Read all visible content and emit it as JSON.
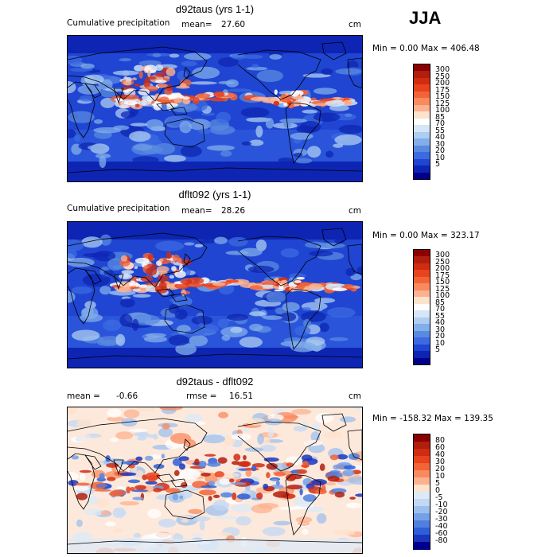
{
  "season": "JJA",
  "panels": [
    {
      "title": "d92taus (yrs 1-1)",
      "left_label": "Cumulative precipitation",
      "stat_label": "mean=",
      "stat_value": "27.60",
      "stat2_label": "",
      "stat2_value": "",
      "units": "cm",
      "minmax": "Min =    0.00 Max = 406.48",
      "colorbar": {
        "ticks": [
          "300",
          "250",
          "200",
          "175",
          "150",
          "125",
          "100",
          "85",
          "70",
          "55",
          "40",
          "30",
          "20",
          "10",
          "5"
        ],
        "colors": [
          "#8b0000",
          "#b01e0e",
          "#d02c12",
          "#e8431e",
          "#f26438",
          "#f88a5e",
          "#fcb190",
          "#fde2cc",
          "#ffffff",
          "#d6e6f8",
          "#aecdf2",
          "#82aeea",
          "#5a8ae0",
          "#3c6ae2",
          "#1f45d2",
          "#0d25b2",
          "#00008b"
        ]
      },
      "map_style": "precip"
    },
    {
      "title": "dflt092 (yrs 1-1)",
      "left_label": "Cumulative precipitation",
      "stat_label": "mean=",
      "stat_value": "28.26",
      "stat2_label": "",
      "stat2_value": "",
      "units": "cm",
      "minmax": "Min =    0.00 Max = 323.17",
      "colorbar": {
        "ticks": [
          "300",
          "250",
          "200",
          "175",
          "150",
          "125",
          "100",
          "85",
          "70",
          "55",
          "40",
          "30",
          "20",
          "10",
          "5"
        ],
        "colors": [
          "#8b0000",
          "#b01e0e",
          "#d02c12",
          "#e8431e",
          "#f26438",
          "#f88a5e",
          "#fcb190",
          "#fde2cc",
          "#ffffff",
          "#d6e6f8",
          "#aecdf2",
          "#82aeea",
          "#5a8ae0",
          "#3c6ae2",
          "#1f45d2",
          "#0d25b2",
          "#00008b"
        ]
      },
      "map_style": "precip"
    },
    {
      "title": "d92taus - dflt092",
      "left_label": "",
      "stat_label": "mean =",
      "stat_value": "-0.66",
      "stat2_label": "rmse =",
      "stat2_value": "16.51",
      "units": "cm",
      "minmax": "Min = -158.32 Max = 139.35",
      "colorbar": {
        "ticks": [
          "80",
          "60",
          "40",
          "30",
          "20",
          "10",
          "5",
          "0",
          "-5",
          "-10",
          "-20",
          "-30",
          "-40",
          "-60",
          "-80"
        ],
        "colors": [
          "#8b0000",
          "#b01e0e",
          "#d02c12",
          "#e8431e",
          "#f26438",
          "#f88a5e",
          "#fcb190",
          "#fde2cc",
          "#dceaf8",
          "#c2d8f4",
          "#9cc0ee",
          "#76a0e6",
          "#5080de",
          "#2f5ed6",
          "#1a36be",
          "#00008b"
        ]
      },
      "map_style": "diff"
    }
  ]
}
